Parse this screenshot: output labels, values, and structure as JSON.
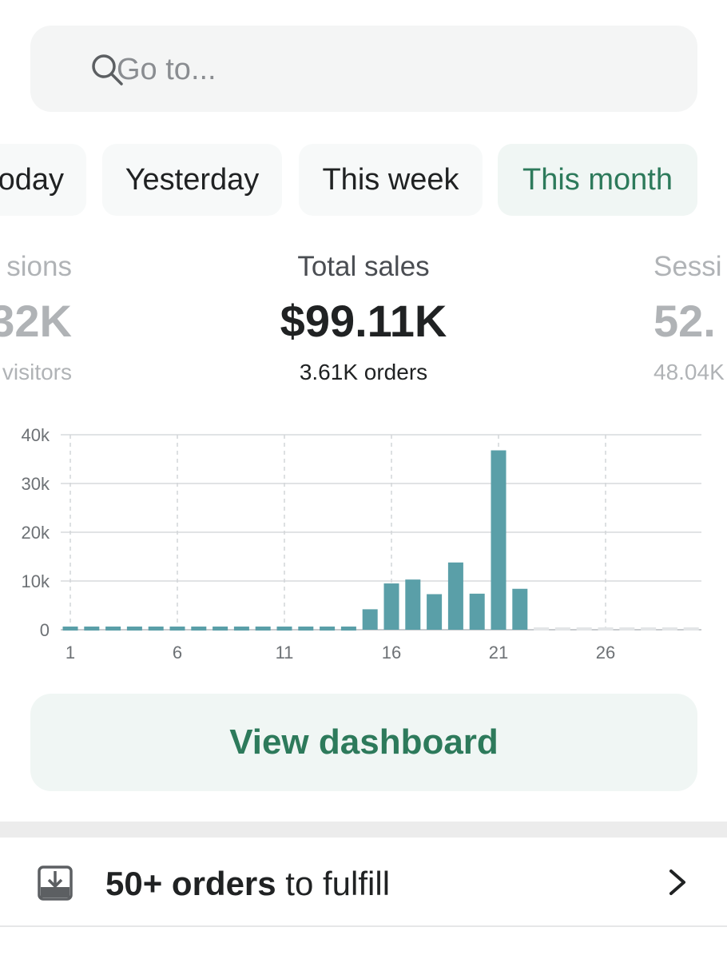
{
  "search": {
    "placeholder": "Go to..."
  },
  "tabs": [
    {
      "label": "oday",
      "active": false
    },
    {
      "label": "Yesterday",
      "active": false
    },
    {
      "label": "This week",
      "active": false
    },
    {
      "label": "This month",
      "active": true
    }
  ],
  "metrics": {
    "left": {
      "label": "sions",
      "value": "32K",
      "sub": "visitors"
    },
    "center": {
      "label": "Total sales",
      "value": "$99.11K",
      "sub": "3.61K orders"
    },
    "right": {
      "label": "Sessi",
      "value": "52.",
      "sub": "48.04K"
    }
  },
  "cta": {
    "label": "View dashboard"
  },
  "task": {
    "bold": "50+ orders",
    "rest": " to fulfill"
  },
  "colors": {
    "accent": "#2d7a5b",
    "bar": "#5a9fa8",
    "future": "#e3e5e7"
  },
  "chart_data": {
    "type": "bar",
    "ylim": [
      0,
      40000
    ],
    "yticks": [
      {
        "value": 0,
        "label": "0"
      },
      {
        "value": 10000,
        "label": "10k"
      },
      {
        "value": 20000,
        "label": "20k"
      },
      {
        "value": 30000,
        "label": "30k"
      },
      {
        "value": 40000,
        "label": "40k"
      }
    ],
    "xticks": [
      1,
      6,
      11,
      16,
      21,
      26
    ],
    "days": [
      1,
      2,
      3,
      4,
      5,
      6,
      7,
      8,
      9,
      10,
      11,
      12,
      13,
      14,
      15,
      16,
      17,
      18,
      19,
      20,
      21,
      22,
      23,
      24,
      25,
      26,
      27,
      28,
      29,
      30
    ],
    "values": [
      0,
      0,
      0,
      0,
      0,
      0,
      0,
      0,
      0,
      0,
      0,
      0,
      0,
      0,
      4200,
      9500,
      10300,
      7300,
      13800,
      7400,
      36800,
      8400,
      null,
      null,
      null,
      null,
      null,
      null,
      null,
      null
    ]
  }
}
